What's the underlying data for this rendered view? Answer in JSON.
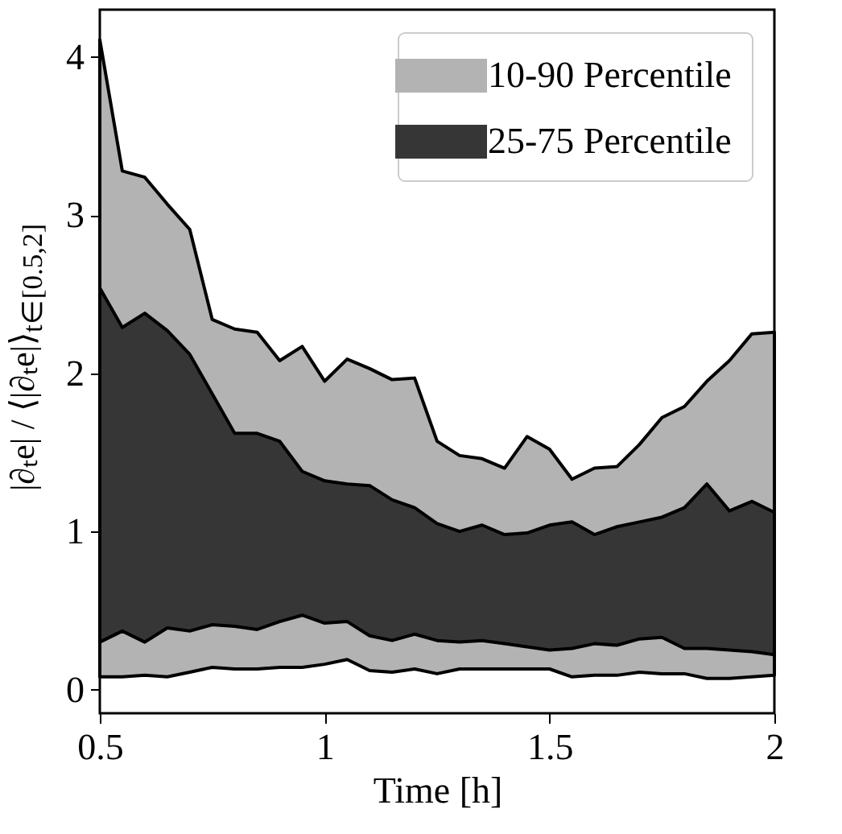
{
  "chart_data": {
    "type": "area",
    "xlabel": "Time [h]",
    "ylabel": "|∂ₜe| / ⟨|∂ₜe|⟩$_{t∈[0.5,2]}$",
    "x": [
      0.5,
      0.55,
      0.6,
      0.65,
      0.7,
      0.75,
      0.8,
      0.85,
      0.9,
      0.95,
      1.0,
      1.05,
      1.1,
      1.15,
      1.2,
      1.25,
      1.3,
      1.35,
      1.4,
      1.45,
      1.5,
      1.55,
      1.6,
      1.65,
      1.7,
      1.75,
      1.8,
      1.85,
      1.9,
      1.95,
      2.0
    ],
    "series": [
      {
        "name": "10-90 Percentile",
        "color": "#b3b3b3",
        "values": [
          null,
          null,
          null,
          null,
          null,
          null,
          null,
          null,
          null,
          null,
          null,
          null,
          null,
          null,
          null,
          null,
          null,
          null,
          null,
          null,
          null,
          null,
          null,
          null,
          null,
          null,
          null,
          null,
          null,
          null,
          null
        ],
        "lower": [
          0.08,
          0.08,
          0.09,
          0.08,
          0.11,
          0.14,
          0.13,
          0.13,
          0.14,
          0.14,
          0.16,
          0.19,
          0.12,
          0.11,
          0.13,
          0.1,
          0.13,
          0.13,
          0.13,
          0.13,
          0.13,
          0.08,
          0.09,
          0.09,
          0.11,
          0.1,
          0.1,
          0.07,
          0.07,
          0.08,
          0.09
        ],
        "upper": [
          4.11,
          3.28,
          3.24,
          3.07,
          2.91,
          2.34,
          2.28,
          2.26,
          2.08,
          2.17,
          1.95,
          2.09,
          2.03,
          1.96,
          1.97,
          1.57,
          1.48,
          1.46,
          1.4,
          1.6,
          1.52,
          1.33,
          1.4,
          1.41,
          1.55,
          1.72,
          1.79,
          1.95,
          2.08,
          2.25,
          2.26
        ]
      },
      {
        "name": "25-75 Percentile",
        "color": "#363636",
        "values": [
          null,
          null,
          null,
          null,
          null,
          null,
          null,
          null,
          null,
          null,
          null,
          null,
          null,
          null,
          null,
          null,
          null,
          null,
          null,
          null,
          null,
          null,
          null,
          null,
          null,
          null,
          null,
          null,
          null,
          null,
          null
        ],
        "lower": [
          0.3,
          0.37,
          0.3,
          0.39,
          0.37,
          0.41,
          0.4,
          0.38,
          0.43,
          0.47,
          0.42,
          0.43,
          0.34,
          0.31,
          0.35,
          0.31,
          0.3,
          0.31,
          0.29,
          0.27,
          0.25,
          0.26,
          0.29,
          0.28,
          0.32,
          0.33,
          0.26,
          0.26,
          0.25,
          0.24,
          0.22
        ],
        "upper": [
          2.54,
          2.29,
          2.38,
          2.27,
          2.12,
          1.87,
          1.62,
          1.62,
          1.57,
          1.38,
          1.32,
          1.3,
          1.29,
          1.2,
          1.15,
          1.05,
          1.0,
          1.04,
          0.98,
          0.99,
          1.04,
          1.06,
          0.98,
          1.03,
          1.06,
          1.09,
          1.15,
          1.3,
          1.13,
          1.19,
          1.12
        ]
      }
    ],
    "xlim": [
      0.5,
      2
    ],
    "xticks": [
      0.5,
      1,
      1.5,
      2
    ],
    "ylim": [
      -0.15,
      4.3
    ],
    "yticks": [
      0,
      1,
      2,
      3,
      4
    ],
    "legend": "top right"
  }
}
